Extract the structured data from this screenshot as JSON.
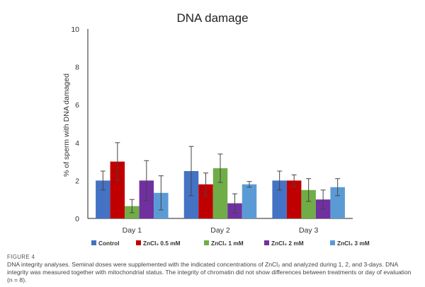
{
  "chart_data": {
    "type": "bar",
    "title": "DNA damage",
    "xlabel": "",
    "ylabel": "% of sperm with DNA damaged",
    "ylim": [
      0,
      10
    ],
    "yticks": [
      "0",
      "2",
      "4",
      "6",
      "8",
      "10"
    ],
    "ytick_values": [
      0,
      2,
      4,
      6,
      8,
      10
    ],
    "grid": false,
    "legend_position": "bottom",
    "categories": [
      "Day 1",
      "Day 2",
      "Day 3"
    ],
    "series": [
      {
        "name": "Control",
        "color": "#4472C4",
        "values": [
          2.0,
          2.5,
          2.0
        ],
        "errors": [
          0.5,
          1.3,
          0.5
        ]
      },
      {
        "name": "ZnCl₂ 0.5 mM",
        "color": "#C00000",
        "values": [
          3.0,
          1.8,
          2.0
        ],
        "errors": [
          1.0,
          0.6,
          0.3
        ]
      },
      {
        "name": "ZnCl₂ 1 mM",
        "color": "#70AD47",
        "values": [
          0.65,
          2.65,
          1.5
        ],
        "errors": [
          0.35,
          0.75,
          0.6
        ]
      },
      {
        "name": "ZnCl₂ 2 mM",
        "color": "#7030A0",
        "values": [
          2.0,
          0.8,
          1.0
        ],
        "errors": [
          1.05,
          0.5,
          0.5
        ]
      },
      {
        "name": "ZnCl₂ 3 mM",
        "color": "#5B9BD5",
        "values": [
          1.35,
          1.8,
          1.65
        ],
        "errors": [
          0.9,
          0.15,
          0.45
        ]
      }
    ]
  },
  "caption": {
    "label": "FIGURE 4",
    "text": "DNA integrity analyses. Seminal doses were supplemented with the indicated concentrations of ZnCl₂ and analyzed during 1, 2, and 3-days. DNA integrity was measured together with mitochondrial status. The integrity of chromatin did not show differences between treatments or day of evaluation (n = 8)."
  }
}
